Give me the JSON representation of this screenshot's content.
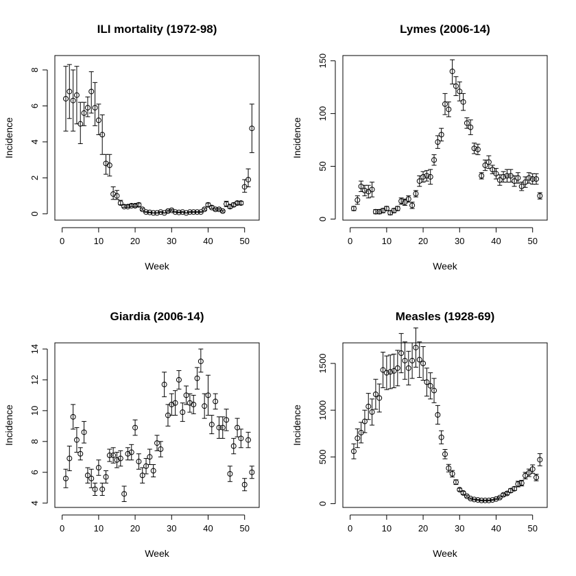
{
  "chart_data": [
    {
      "type": "scatter",
      "title": "ILI mortality (1972-98)",
      "xlabel": "Week",
      "ylabel": "Incidence",
      "xlim": [
        -2,
        54
      ],
      "ylim": [
        -0.35,
        8.8
      ],
      "xticks": [
        0,
        10,
        20,
        30,
        40,
        50
      ],
      "yticks": [
        0,
        2,
        4,
        6,
        8
      ],
      "grid": false,
      "error_bars": true,
      "series": [
        {
          "x": [
            1,
            2,
            3,
            4,
            5,
            6,
            7,
            8,
            9,
            10,
            11,
            12,
            13,
            14,
            15,
            16,
            17,
            18,
            19,
            20,
            21,
            22,
            23,
            24,
            25,
            26,
            27,
            28,
            29,
            30,
            31,
            32,
            33,
            34,
            35,
            36,
            37,
            38,
            39,
            40,
            41,
            42,
            43,
            44,
            45,
            46,
            47,
            48,
            49,
            50,
            51,
            52
          ],
          "y": [
            6.4,
            6.8,
            6.3,
            6.6,
            5.0,
            5.6,
            5.9,
            6.8,
            5.9,
            5.2,
            4.4,
            2.8,
            2.7,
            1.1,
            1.0,
            0.6,
            0.4,
            0.4,
            0.45,
            0.45,
            0.5,
            0.25,
            0.1,
            0.08,
            0.05,
            0.05,
            0.1,
            0.05,
            0.15,
            0.2,
            0.1,
            0.08,
            0.1,
            0.05,
            0.1,
            0.1,
            0.1,
            0.1,
            0.25,
            0.5,
            0.35,
            0.25,
            0.25,
            0.15,
            0.55,
            0.4,
            0.5,
            0.6,
            0.6,
            1.5,
            1.9,
            4.75
          ],
          "lower": [
            4.6,
            5.3,
            4.6,
            5.0,
            3.9,
            4.9,
            5.4,
            5.6,
            4.9,
            4.4,
            3.3,
            2.2,
            2.1,
            0.8,
            0.8,
            0.5,
            0.35,
            0.35,
            0.4,
            0.38,
            0.4,
            0.2,
            0.08,
            0.06,
            0.04,
            0.04,
            0.08,
            0.04,
            0.1,
            0.15,
            0.08,
            0.06,
            0.08,
            0.04,
            0.08,
            0.08,
            0.08,
            0.08,
            0.2,
            0.4,
            0.3,
            0.2,
            0.2,
            0.1,
            0.4,
            0.3,
            0.4,
            0.5,
            0.5,
            1.2,
            1.5,
            3.4
          ],
          "upper": [
            8.2,
            8.3,
            8.0,
            8.2,
            6.2,
            6.2,
            6.5,
            7.9,
            7.3,
            6.1,
            5.5,
            3.3,
            3.3,
            1.5,
            1.3,
            0.75,
            0.5,
            0.5,
            0.55,
            0.55,
            0.6,
            0.3,
            0.12,
            0.1,
            0.06,
            0.06,
            0.12,
            0.06,
            0.2,
            0.25,
            0.12,
            0.1,
            0.12,
            0.06,
            0.12,
            0.12,
            0.12,
            0.12,
            0.3,
            0.6,
            0.45,
            0.3,
            0.3,
            0.2,
            0.7,
            0.5,
            0.6,
            0.7,
            0.7,
            1.9,
            2.5,
            6.1
          ]
        }
      ]
    },
    {
      "type": "scatter",
      "title": "Lymes (2006-14)",
      "xlabel": "Week",
      "ylabel": "Incidence",
      "xlim": [
        -2,
        54
      ],
      "ylim": [
        -1,
        155
      ],
      "xticks": [
        0,
        10,
        20,
        30,
        40,
        50
      ],
      "yticks": [
        0,
        50,
        100,
        150
      ],
      "grid": false,
      "error_bars": true,
      "series": [
        {
          "x": [
            1,
            2,
            3,
            4,
            5,
            6,
            7,
            8,
            9,
            10,
            11,
            12,
            13,
            14,
            15,
            16,
            17,
            18,
            19,
            20,
            21,
            22,
            23,
            24,
            25,
            26,
            27,
            28,
            29,
            30,
            31,
            32,
            33,
            34,
            35,
            36,
            37,
            38,
            39,
            40,
            41,
            42,
            43,
            44,
            45,
            46,
            47,
            48,
            49,
            50,
            51,
            52
          ],
          "y": [
            10,
            18,
            31,
            27,
            26,
            28,
            7,
            7,
            8,
            10,
            6,
            8,
            10,
            17,
            16,
            19,
            13,
            24,
            36,
            40,
            41,
            40,
            56,
            73,
            80,
            109,
            104,
            140,
            126,
            121,
            111,
            91,
            87,
            67,
            66,
            41,
            51,
            54,
            47,
            43,
            37,
            40,
            41,
            41,
            36,
            39,
            31,
            35,
            39,
            38,
            38,
            22
          ],
          "lower": [
            8,
            14,
            26,
            22,
            20,
            21,
            5,
            5,
            6,
            8,
            4,
            6,
            8,
            14,
            13,
            16,
            10,
            21,
            31,
            35,
            36,
            33,
            51,
            67,
            74,
            99,
            97,
            128,
            117,
            112,
            103,
            86,
            80,
            62,
            61,
            38,
            46,
            48,
            43,
            38,
            32,
            35,
            35,
            35,
            31,
            34,
            27,
            30,
            34,
            33,
            33,
            19
          ],
          "upper": [
            12,
            22,
            36,
            32,
            32,
            35,
            9,
            9,
            10,
            12,
            8,
            10,
            12,
            20,
            19,
            22,
            16,
            27,
            41,
            45,
            46,
            47,
            61,
            79,
            86,
            119,
            111,
            151,
            135,
            130,
            119,
            96,
            94,
            72,
            71,
            44,
            56,
            60,
            51,
            48,
            42,
            45,
            47,
            47,
            41,
            44,
            35,
            40,
            44,
            43,
            43,
            25
          ]
        }
      ]
    },
    {
      "type": "scatter",
      "title": "Giardia (2006-14)",
      "xlabel": "Week",
      "ylabel": "Incidence",
      "xlim": [
        -2,
        54
      ],
      "ylim": [
        3.72,
        14.4
      ],
      "xticks": [
        0,
        10,
        20,
        30,
        40,
        50
      ],
      "yticks": [
        4,
        6,
        8,
        10,
        12,
        14
      ],
      "grid": false,
      "error_bars": true,
      "series": [
        {
          "x": [
            1,
            2,
            3,
            4,
            5,
            6,
            7,
            8,
            9,
            10,
            11,
            12,
            13,
            14,
            15,
            16,
            17,
            18,
            19,
            20,
            21,
            22,
            23,
            24,
            25,
            26,
            27,
            28,
            29,
            30,
            31,
            32,
            33,
            34,
            35,
            36,
            37,
            38,
            39,
            40,
            41,
            42,
            43,
            44,
            45,
            46,
            47,
            48,
            49,
            50,
            51,
            52
          ],
          "y": [
            5.6,
            6.9,
            9.6,
            8.1,
            7.2,
            8.6,
            5.8,
            5.6,
            4.9,
            6.3,
            4.9,
            5.7,
            7.1,
            7.1,
            6.8,
            6.9,
            4.6,
            7.2,
            7.3,
            8.9,
            6.7,
            5.8,
            6.4,
            7.0,
            6.1,
            7.9,
            7.5,
            11.7,
            9.7,
            10.4,
            10.5,
            12.0,
            9.9,
            11.0,
            10.5,
            10.4,
            12.1,
            13.2,
            10.3,
            11.0,
            9.1,
            10.6,
            8.9,
            8.9,
            9.4,
            5.9,
            7.7,
            8.9,
            8.2,
            5.2,
            8.1,
            6.0
          ],
          "lower": [
            5.0,
            6.1,
            8.8,
            7.3,
            6.8,
            7.9,
            5.3,
            5.0,
            4.5,
            5.8,
            4.5,
            5.3,
            6.7,
            6.6,
            6.3,
            6.4,
            4.1,
            6.8,
            6.8,
            8.4,
            6.2,
            5.3,
            5.9,
            6.5,
            5.7,
            7.4,
            7.0,
            10.9,
            9.0,
            9.7,
            9.7,
            11.4,
            9.3,
            10.4,
            9.9,
            9.8,
            11.4,
            12.5,
            9.5,
            9.7,
            8.5,
            10.1,
            8.2,
            8.2,
            8.7,
            5.4,
            7.2,
            8.3,
            7.6,
            4.8,
            7.6,
            5.6
          ],
          "upper": [
            6.2,
            7.7,
            10.4,
            8.9,
            7.6,
            9.3,
            6.3,
            6.2,
            5.3,
            6.8,
            5.3,
            6.1,
            7.5,
            7.6,
            7.3,
            7.4,
            5.1,
            7.6,
            7.8,
            9.4,
            7.2,
            6.3,
            6.9,
            7.5,
            6.5,
            8.4,
            8.0,
            12.5,
            10.4,
            11.1,
            11.3,
            12.6,
            10.5,
            11.6,
            11.1,
            11.0,
            12.8,
            14.0,
            11.1,
            12.3,
            9.7,
            11.1,
            9.6,
            9.6,
            10.1,
            6.4,
            8.2,
            9.5,
            8.8,
            5.6,
            8.6,
            6.4
          ]
        }
      ]
    },
    {
      "type": "scatter",
      "title": "Measles (1928-69)",
      "xlabel": "Week",
      "ylabel": "Incidence",
      "xlim": [
        -2,
        54
      ],
      "ylim": [
        -40,
        1720
      ],
      "xticks": [
        0,
        10,
        20,
        30,
        40,
        50
      ],
      "yticks": [
        0,
        500,
        1000,
        1500
      ],
      "grid": false,
      "error_bars": true,
      "series": [
        {
          "x": [
            1,
            2,
            3,
            4,
            5,
            6,
            7,
            8,
            9,
            10,
            11,
            12,
            13,
            14,
            15,
            16,
            17,
            18,
            19,
            20,
            21,
            22,
            23,
            24,
            25,
            26,
            27,
            28,
            29,
            30,
            31,
            32,
            33,
            34,
            35,
            36,
            37,
            38,
            39,
            40,
            41,
            42,
            43,
            44,
            45,
            46,
            47,
            48,
            49,
            50,
            51,
            52
          ],
          "y": [
            560,
            700,
            760,
            880,
            1040,
            980,
            1170,
            1130,
            1430,
            1400,
            1410,
            1420,
            1450,
            1610,
            1530,
            1450,
            1530,
            1670,
            1540,
            1500,
            1300,
            1260,
            1210,
            950,
            710,
            530,
            380,
            320,
            230,
            150,
            115,
            80,
            55,
            45,
            40,
            35,
            35,
            35,
            40,
            50,
            65,
            95,
            110,
            140,
            160,
            210,
            220,
            300,
            330,
            370,
            280,
            470
          ],
          "lower": [
            480,
            600,
            650,
            760,
            900,
            840,
            1010,
            980,
            1240,
            1220,
            1230,
            1240,
            1260,
            1400,
            1330,
            1270,
            1340,
            1460,
            1350,
            1320,
            1150,
            1120,
            1080,
            850,
            640,
            480,
            340,
            285,
            205,
            135,
            100,
            70,
            48,
            40,
            35,
            30,
            30,
            30,
            35,
            43,
            56,
            82,
            95,
            120,
            140,
            180,
            190,
            265,
            290,
            325,
            245,
            405
          ],
          "upper": [
            640,
            800,
            870,
            1000,
            1180,
            1120,
            1330,
            1280,
            1620,
            1580,
            1590,
            1600,
            1640,
            1820,
            1730,
            1630,
            1720,
            1880,
            1730,
            1680,
            1450,
            1400,
            1340,
            1050,
            780,
            580,
            420,
            355,
            255,
            165,
            130,
            90,
            62,
            50,
            45,
            40,
            40,
            40,
            45,
            57,
            74,
            108,
            125,
            160,
            180,
            240,
            250,
            335,
            370,
            415,
            315,
            535
          ]
        }
      ]
    }
  ]
}
